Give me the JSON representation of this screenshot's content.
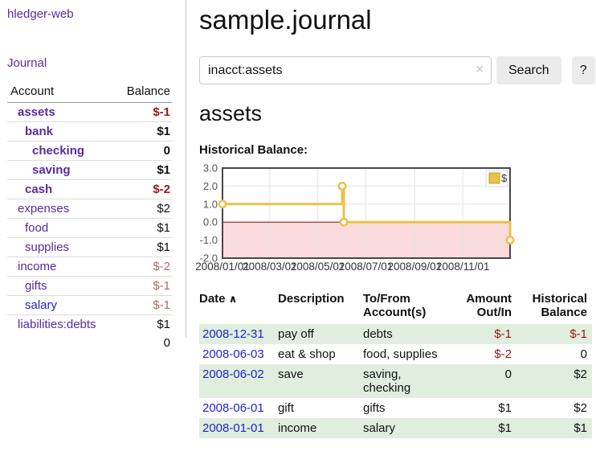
{
  "app": {
    "brand": "hledger-web",
    "nav_journal": "Journal"
  },
  "colors": {
    "link_purple": "#582c9e",
    "link_blue": "#2222cf",
    "negative_strong": "#9e1616",
    "negative_muted": "#b56a6a",
    "row_green": "#dfeedd",
    "button_gray": "#ebebeb"
  },
  "sidebar": {
    "headers": {
      "account": "Account",
      "balance": "Balance"
    },
    "accounts": [
      {
        "label": "assets",
        "level": 0,
        "bold": true,
        "label_style": "purple",
        "balance": "$-1",
        "balance_style": "neg-strong"
      },
      {
        "label": "bank",
        "level": 1,
        "bold": true,
        "label_style": "purple",
        "balance": "$1",
        "balance_style": "pos-strong"
      },
      {
        "label": "checking",
        "level": 2,
        "bold": true,
        "label_style": "purple",
        "balance": "0",
        "balance_style": "pos-strong"
      },
      {
        "label": "saving",
        "level": 2,
        "bold": true,
        "label_style": "purple",
        "balance": "$1",
        "balance_style": "pos-strong"
      },
      {
        "label": "cash",
        "level": 1,
        "bold": true,
        "label_style": "purple",
        "balance": "$-2",
        "balance_style": "neg-strong"
      },
      {
        "label": "expenses",
        "level": 0,
        "bold": false,
        "label_style": "purple",
        "balance": "$2",
        "balance_style": "pos"
      },
      {
        "label": "food",
        "level": 1,
        "bold": false,
        "label_style": "purple",
        "balance": "$1",
        "balance_style": "pos"
      },
      {
        "label": "supplies",
        "level": 1,
        "bold": false,
        "label_style": "purple",
        "balance": "$1",
        "balance_style": "pos"
      },
      {
        "label": "income",
        "level": 0,
        "bold": false,
        "label_style": "purple",
        "balance": "$-2",
        "balance_style": "neg-muted"
      },
      {
        "label": "gifts",
        "level": 1,
        "bold": false,
        "label_style": "purple",
        "balance": "$-1",
        "balance_style": "neg-muted"
      },
      {
        "label": "salary",
        "level": 1,
        "bold": false,
        "label_style": "blue",
        "balance": "$-1",
        "balance_style": "neg-muted"
      },
      {
        "label": "liabilities:debts",
        "level": 0,
        "bold": false,
        "label_style": "purple",
        "balance": "$1",
        "balance_style": "pos"
      }
    ],
    "total": "0"
  },
  "header": {
    "title": "sample.journal"
  },
  "search": {
    "value": "inacct:assets",
    "clear_icon": "✕",
    "button": "Search",
    "help_button": "?"
  },
  "account_page": {
    "heading": "assets",
    "chart_label": "Historical Balance:"
  },
  "chart_data": {
    "type": "line",
    "step": true,
    "title": "Historical Balance",
    "legend": {
      "label": "$",
      "position": "top-right"
    },
    "series": [
      {
        "name": "$",
        "points": [
          {
            "date": "2008/01/01",
            "day": 0,
            "value": 1
          },
          {
            "date": "2008/06/01",
            "day": 152,
            "value": 2
          },
          {
            "date": "2008/06/03",
            "day": 154,
            "value": 0
          },
          {
            "date": "2008/12/31",
            "day": 365,
            "value": -1
          }
        ]
      }
    ],
    "x_ticks": [
      {
        "label": "2008/01/01",
        "day": 0
      },
      {
        "label": "2008/03/01",
        "day": 60
      },
      {
        "label": "2008/05/01",
        "day": 121
      },
      {
        "label": "2008/07/01",
        "day": 182
      },
      {
        "label": "2008/09/01",
        "day": 244
      },
      {
        "label": "2008/11/01",
        "day": 305
      }
    ],
    "y_ticks": [
      "3.0",
      "2.0",
      "1.0",
      "0.0",
      "-1.0",
      "-2.0"
    ],
    "ylim": [
      -2,
      3
    ],
    "xlim_days": [
      0,
      365
    ],
    "grid": true,
    "colors": {
      "line": "#e9c24a",
      "marker_fill": "#ffffff",
      "legend_fill": "#e8c34b",
      "legend_border": "#bfa02c",
      "negative_region": "#fbdbdb",
      "zero_line": "#a00000",
      "border": "#484848",
      "grid": "#e3e3e3",
      "tick_text": "#555555",
      "x_label_text": "#333333"
    }
  },
  "register": {
    "headers": {
      "date": "Date",
      "sort_icon": "∧",
      "description": "Description",
      "accounts": "To/From Account(s)",
      "amount": "Amount Out/In",
      "balance": "Historical Balance"
    },
    "rows": [
      {
        "date": "2008-12-31",
        "description": "pay off",
        "accounts": "debts",
        "amount": "$-1",
        "balance": "$-1"
      },
      {
        "date": "2008-06-03",
        "description": "eat & shop",
        "accounts": "food, supplies",
        "amount": "$-2",
        "balance": "0"
      },
      {
        "date": "2008-06-02",
        "description": "save",
        "accounts": "saving, checking",
        "amount": "0",
        "balance": "$2"
      },
      {
        "date": "2008-06-01",
        "description": "gift",
        "accounts": "gifts",
        "amount": "$1",
        "balance": "$2"
      },
      {
        "date": "2008-01-01",
        "description": "income",
        "accounts": "salary",
        "amount": "$1",
        "balance": "$1"
      }
    ]
  }
}
